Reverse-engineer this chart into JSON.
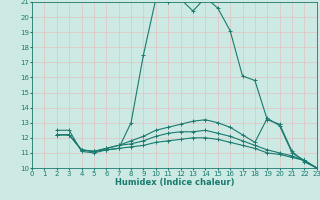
{
  "xlabel": "Humidex (Indice chaleur)",
  "xlim": [
    0,
    23
  ],
  "ylim": [
    10,
    21
  ],
  "xticks": [
    0,
    1,
    2,
    3,
    4,
    5,
    6,
    7,
    8,
    9,
    10,
    11,
    12,
    13,
    14,
    15,
    16,
    17,
    18,
    19,
    20,
    21,
    22,
    23
  ],
  "yticks": [
    10,
    11,
    12,
    13,
    14,
    15,
    16,
    17,
    18,
    19,
    20,
    21
  ],
  "bg_color": "#cce9e4",
  "line_color": "#1a7a6e",
  "grid_color": "#b0d8d0",
  "lines": [
    {
      "x": [
        2,
        3,
        4,
        5,
        6,
        7,
        8,
        9,
        10,
        11,
        12,
        13,
        14,
        15,
        16,
        17,
        18,
        19,
        20,
        21,
        22,
        23
      ],
      "y": [
        12.5,
        12.5,
        11.1,
        11.0,
        11.2,
        11.3,
        13.0,
        17.5,
        21.2,
        21.0,
        21.2,
        20.4,
        21.3,
        20.6,
        19.1,
        16.1,
        15.8,
        13.2,
        12.9,
        11.1,
        10.4,
        10.0
      ]
    },
    {
      "x": [
        2,
        3,
        4,
        5,
        6,
        7,
        8,
        9,
        10,
        11,
        12,
        13,
        14,
        15,
        16,
        17,
        18,
        19,
        20,
        21,
        22,
        23
      ],
      "y": [
        12.2,
        12.2,
        11.2,
        11.1,
        11.2,
        11.3,
        11.4,
        11.5,
        11.7,
        11.8,
        11.9,
        12.0,
        12.0,
        11.9,
        11.7,
        11.5,
        11.3,
        11.0,
        10.9,
        10.7,
        10.5,
        10.0
      ]
    },
    {
      "x": [
        2,
        3,
        4,
        5,
        6,
        7,
        8,
        9,
        10,
        11,
        12,
        13,
        14,
        15,
        16,
        17,
        18,
        19,
        20,
        21,
        22,
        23
      ],
      "y": [
        12.2,
        12.2,
        11.2,
        11.1,
        11.3,
        11.5,
        11.6,
        11.8,
        12.1,
        12.3,
        12.4,
        12.4,
        12.5,
        12.3,
        12.1,
        11.8,
        11.5,
        11.2,
        11.0,
        10.8,
        10.5,
        10.0
      ]
    },
    {
      "x": [
        2,
        3,
        4,
        5,
        6,
        7,
        8,
        9,
        10,
        11,
        12,
        13,
        14,
        15,
        16,
        17,
        18,
        19,
        20,
        21,
        22,
        23
      ],
      "y": [
        12.2,
        12.2,
        11.2,
        11.1,
        11.3,
        11.5,
        11.8,
        12.1,
        12.5,
        12.7,
        12.9,
        13.1,
        13.2,
        13.0,
        12.7,
        12.2,
        11.7,
        13.3,
        12.8,
        11.0,
        10.5,
        10.0
      ]
    }
  ],
  "marker": "+",
  "markersize": 3,
  "linewidth": 0.8,
  "tick_fontsize": 5,
  "xlabel_fontsize": 6
}
